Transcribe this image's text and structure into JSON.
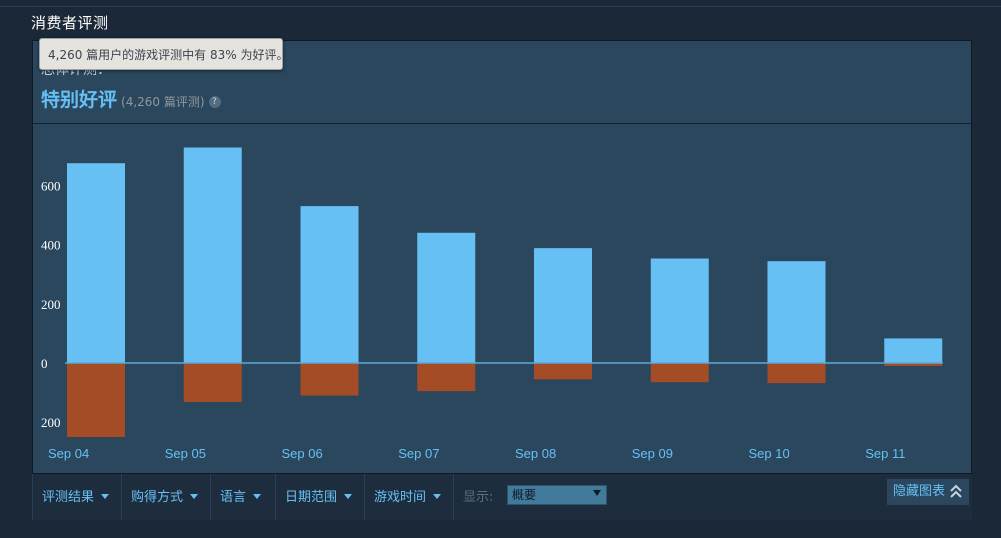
{
  "section_title": "消费者评测",
  "tooltip_text": "4,260 篇用户的游戏评测中有 83% 为好评。",
  "summary": {
    "heading": "总体评测：",
    "rating": "特别好评",
    "count": "(4,260 篇评测)",
    "help_icon": "?"
  },
  "filters": {
    "items": [
      {
        "label": "评测结果"
      },
      {
        "label": "购得方式"
      },
      {
        "label": "语言"
      },
      {
        "label": "日期范围"
      },
      {
        "label": "游戏时间"
      }
    ],
    "display_label": "显示:",
    "display_value": "概要",
    "hide_chart_label": "隐藏图表"
  },
  "colors": {
    "positive": "#66c0f4",
    "negative": "#a34c25",
    "accent": "#66c0f4",
    "panel": "#2a475e"
  },
  "chart_data": {
    "type": "bar",
    "categories": [
      "Sep 04",
      "Sep 05",
      "Sep 06",
      "Sep 07",
      "Sep 08",
      "Sep 09",
      "Sep 10",
      "Sep 11"
    ],
    "series": [
      {
        "values": [
          675,
          728,
          530,
          440,
          388,
          353,
          344,
          83
        ]
      },
      {
        "values": [
          -250,
          -132,
          -110,
          -95,
          -55,
          -65,
          -68,
          -10
        ]
      }
    ],
    "yticks": [
      600,
      400,
      200,
      0,
      -200
    ],
    "ytick_labels": [
      "600",
      "400",
      "200",
      "0",
      "200"
    ],
    "ylim": [
      -270,
      800
    ],
    "grid": false,
    "legend": "none",
    "title": "",
    "xlabel": "",
    "ylabel": ""
  }
}
